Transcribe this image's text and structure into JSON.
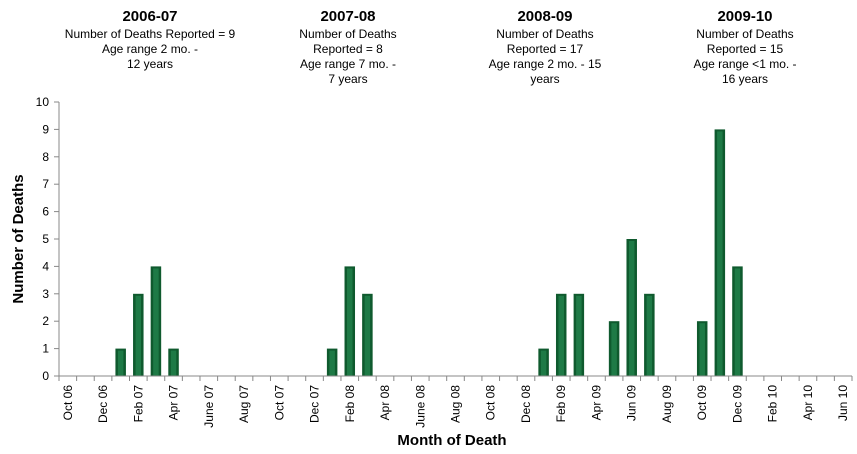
{
  "chart_data": {
    "type": "bar",
    "xlabel": "Month of Death",
    "ylabel": "Number of Deaths",
    "ylim": [
      0,
      10
    ],
    "yticks": [
      0,
      1,
      2,
      3,
      4,
      5,
      6,
      7,
      8,
      9,
      10
    ],
    "grid": false,
    "bar_color": "#1e7a46",
    "x_tick_labels": [
      "Oct 06",
      "Dec 06",
      "Feb 07",
      "Apr 07",
      "June 07",
      "Aug 07",
      "Oct 07",
      "Dec 07",
      "Feb 08",
      "Apr 08",
      "June 08",
      "Aug 08",
      "Oct 08",
      "Dec 08",
      "Feb 09",
      "Apr 09",
      "Jun 09",
      "Aug 09",
      "Oct 09",
      "Dec 09",
      "Feb 10",
      "Apr 10",
      "Jun 10"
    ],
    "bars": [
      {
        "month": "Jan 07",
        "value": 1
      },
      {
        "month": "Feb 07",
        "value": 3
      },
      {
        "month": "Mar 07",
        "value": 4
      },
      {
        "month": "Apr 07",
        "value": 1
      },
      {
        "month": "Jan 08",
        "value": 1
      },
      {
        "month": "Feb 08",
        "value": 4
      },
      {
        "month": "Mar 08",
        "value": 3
      },
      {
        "month": "Jan 09",
        "value": 1
      },
      {
        "month": "Feb 09",
        "value": 3
      },
      {
        "month": "Mar 09",
        "value": 3
      },
      {
        "month": "May 09",
        "value": 2
      },
      {
        "month": "Jun 09",
        "value": 5
      },
      {
        "month": "Jul 09",
        "value": 3
      },
      {
        "month": "Oct 09",
        "value": 2
      },
      {
        "month": "Nov 09",
        "value": 9
      },
      {
        "month": "Dec 09",
        "value": 4
      }
    ],
    "annotations": [
      {
        "title": "2006-07",
        "lines": [
          "Number of Deaths Reported = 9",
          "Age range 2 mo. -",
          "12 years"
        ]
      },
      {
        "title": "2007-08",
        "lines": [
          "Number of Deaths",
          "Reported = 8",
          "Age range 7 mo. -",
          "7 years"
        ]
      },
      {
        "title": "2008-09",
        "lines": [
          "Number of Deaths",
          "Reported = 17",
          "Age range 2 mo. - 15",
          "years"
        ]
      },
      {
        "title": "2009-10",
        "lines": [
          "Number of Deaths",
          "Reported = 15",
          "Age range  <1 mo. -",
          "16 years"
        ]
      }
    ]
  }
}
